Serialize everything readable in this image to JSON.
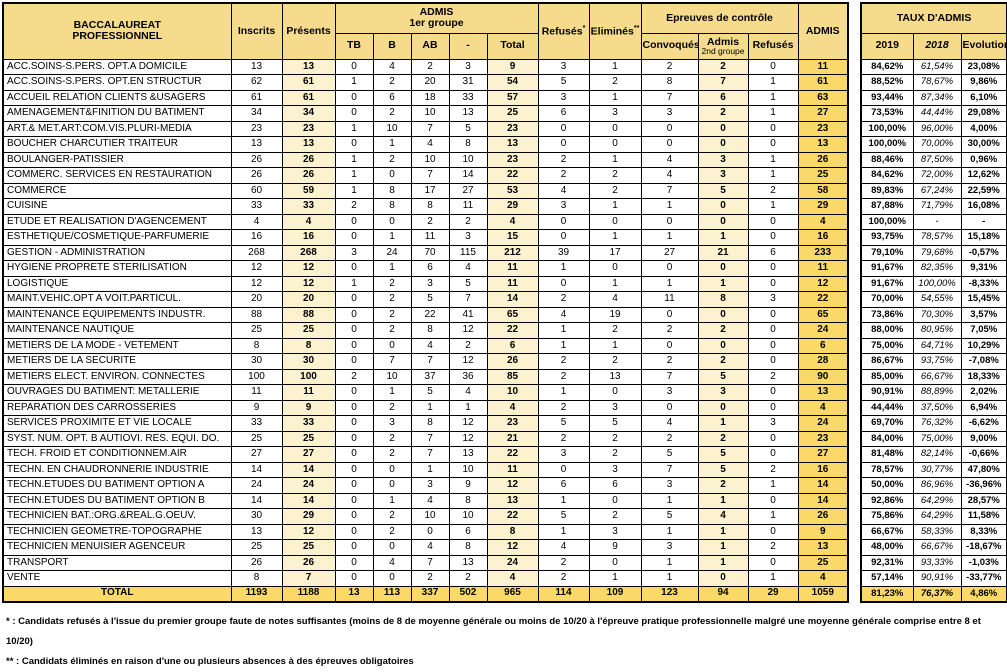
{
  "colors": {
    "header_bg": "#F7DB8D",
    "light_bg": "#FDF2CF",
    "gold_bg": "#FBD968"
  },
  "main_table": {
    "title_line1": "BACCALAUREAT",
    "title_line2": "PROFESSIONNEL",
    "headers": {
      "inscrits": "Inscrits",
      "presents": "Présents",
      "admis_group_line1": "ADMIS",
      "admis_group_line2": "1er groupe",
      "sub_tb": "TB",
      "sub_b": "B",
      "sub_ab": "AB",
      "sub_dash": "-",
      "sub_total": "Total",
      "refuses_label": "Refusés",
      "refuses_mark": "*",
      "elimines_label": "Eliminés",
      "elimines_mark": "**",
      "controle_group": "Epreuves de contrôle",
      "sub_convoques": "Convoqués",
      "admis2_line1": "Admis",
      "admis2_line2": "2nd groupe",
      "sub_refuses2": "Refusés",
      "admis": "ADMIS"
    },
    "rows": [
      {
        "label": "ACC.SOINS-S.PERS. OPT.A DOMICILE",
        "values": [
          13,
          13,
          0,
          4,
          2,
          3,
          9,
          3,
          1,
          2,
          2,
          0,
          11
        ]
      },
      {
        "label": "ACC.SOINS-S.PERS. OPT.EN STRUCTUR",
        "values": [
          62,
          61,
          1,
          2,
          20,
          31,
          54,
          5,
          2,
          8,
          7,
          1,
          61
        ]
      },
      {
        "label": "ACCUEIL RELATION CLIENTS &USAGERS",
        "values": [
          61,
          61,
          0,
          6,
          18,
          33,
          57,
          3,
          1,
          7,
          6,
          1,
          63
        ]
      },
      {
        "label": "AMENAGEMENT&FINITION DU BATIMENT",
        "values": [
          34,
          34,
          0,
          2,
          10,
          13,
          25,
          6,
          3,
          3,
          2,
          1,
          27
        ]
      },
      {
        "label": "ART.& MET.ART:COM.VIS.PLURI-MEDIA",
        "values": [
          23,
          23,
          1,
          10,
          7,
          5,
          23,
          0,
          0,
          0,
          0,
          0,
          23
        ]
      },
      {
        "label": "BOUCHER CHARCUTIER TRAITEUR",
        "values": [
          13,
          13,
          0,
          1,
          4,
          8,
          13,
          0,
          0,
          0,
          0,
          0,
          13
        ]
      },
      {
        "label": "BOULANGER-PATISSIER",
        "values": [
          26,
          26,
          1,
          2,
          10,
          10,
          23,
          2,
          1,
          4,
          3,
          1,
          26
        ]
      },
      {
        "label": "COMMERC. SERVICES EN RESTAURATION",
        "values": [
          26,
          26,
          1,
          0,
          7,
          14,
          22,
          2,
          2,
          4,
          3,
          1,
          25
        ]
      },
      {
        "label": "COMMERCE",
        "values": [
          60,
          59,
          1,
          8,
          17,
          27,
          53,
          4,
          2,
          7,
          5,
          2,
          58
        ]
      },
      {
        "label": "CUISINE",
        "values": [
          33,
          33,
          2,
          8,
          8,
          11,
          29,
          3,
          1,
          1,
          0,
          1,
          29
        ]
      },
      {
        "label": "ETUDE ET REALISATION D'AGENCEMENT",
        "values": [
          4,
          4,
          0,
          0,
          2,
          2,
          4,
          0,
          0,
          0,
          0,
          0,
          4
        ]
      },
      {
        "label": "ESTHETIQUE/COSMETIQUE-PARFUMERIE",
        "values": [
          16,
          16,
          0,
          1,
          11,
          3,
          15,
          0,
          1,
          1,
          1,
          0,
          16
        ]
      },
      {
        "label": "GESTION - ADMINISTRATION",
        "values": [
          268,
          268,
          3,
          24,
          70,
          115,
          212,
          39,
          17,
          27,
          21,
          6,
          233
        ]
      },
      {
        "label": "HYGIENE PROPRETE STERILISATION",
        "values": [
          12,
          12,
          0,
          1,
          6,
          4,
          11,
          1,
          0,
          0,
          0,
          0,
          11
        ]
      },
      {
        "label": "LOGISTIQUE",
        "values": [
          12,
          12,
          1,
          2,
          3,
          5,
          11,
          0,
          1,
          1,
          1,
          0,
          12
        ]
      },
      {
        "label": "MAINT.VEHIC.OPT A VOIT.PARTICUL.",
        "values": [
          20,
          20,
          0,
          2,
          5,
          7,
          14,
          2,
          4,
          11,
          8,
          3,
          22
        ]
      },
      {
        "label": "MAINTENANCE EQUIPEMENTS INDUSTR.",
        "values": [
          88,
          88,
          0,
          2,
          22,
          41,
          65,
          4,
          19,
          0,
          0,
          0,
          65
        ]
      },
      {
        "label": "MAINTENANCE NAUTIQUE",
        "values": [
          25,
          25,
          0,
          2,
          8,
          12,
          22,
          1,
          2,
          2,
          2,
          0,
          24
        ]
      },
      {
        "label": "METIERS DE LA MODE - VETEMENT",
        "values": [
          8,
          8,
          0,
          0,
          4,
          2,
          6,
          1,
          1,
          0,
          0,
          0,
          6
        ]
      },
      {
        "label": "METIERS DE LA SECURITE",
        "values": [
          30,
          30,
          0,
          7,
          7,
          12,
          26,
          2,
          2,
          2,
          2,
          0,
          28
        ]
      },
      {
        "label": "METIERS ELECT. ENVIRON. CONNECTES",
        "values": [
          100,
          100,
          2,
          10,
          37,
          36,
          85,
          2,
          13,
          7,
          5,
          2,
          90
        ]
      },
      {
        "label": "OUVRAGES DU BATIMENT: METALLERIE",
        "values": [
          11,
          11,
          0,
          1,
          5,
          4,
          10,
          1,
          0,
          3,
          3,
          0,
          13
        ]
      },
      {
        "label": "REPARATION DES CARROSSERIES",
        "values": [
          9,
          9,
          0,
          2,
          1,
          1,
          4,
          2,
          3,
          0,
          0,
          0,
          4
        ]
      },
      {
        "label": "SERVICES PROXIMITE ET VIE LOCALE",
        "values": [
          33,
          33,
          0,
          3,
          8,
          12,
          23,
          5,
          5,
          4,
          1,
          3,
          24
        ]
      },
      {
        "label": "SYST. NUM. OPT. B AUTIOVI. RES. EQUI. DO.",
        "values": [
          25,
          25,
          0,
          2,
          7,
          12,
          21,
          2,
          2,
          2,
          2,
          0,
          23
        ]
      },
      {
        "label": "TECH. FROID ET CONDITIONNEM.AIR",
        "values": [
          27,
          27,
          0,
          2,
          7,
          13,
          22,
          3,
          2,
          5,
          5,
          0,
          27
        ]
      },
      {
        "label": "TECHN. EN CHAUDRONNERIE INDUSTRIE",
        "values": [
          14,
          14,
          0,
          0,
          1,
          10,
          11,
          0,
          3,
          7,
          5,
          2,
          16
        ]
      },
      {
        "label": "TECHN.ETUDES DU BATIMENT OPTION A",
        "values": [
          24,
          24,
          0,
          0,
          3,
          9,
          12,
          6,
          6,
          3,
          2,
          1,
          14
        ]
      },
      {
        "label": "TECHN.ETUDES DU BATIMENT OPTION B",
        "values": [
          14,
          14,
          0,
          1,
          4,
          8,
          13,
          1,
          0,
          1,
          1,
          0,
          14
        ]
      },
      {
        "label": "TECHNICIEN BAT.:ORG.&REAL.G.OEUV.",
        "values": [
          30,
          29,
          0,
          2,
          10,
          10,
          22,
          5,
          2,
          5,
          4,
          1,
          26
        ]
      },
      {
        "label": "TECHNICIEN GEOMETRE-TOPOGRAPHE",
        "values": [
          13,
          12,
          0,
          2,
          0,
          6,
          8,
          1,
          3,
          1,
          1,
          0,
          9
        ]
      },
      {
        "label": "TECHNICIEN MENUISIER AGENCEUR",
        "values": [
          25,
          25,
          0,
          0,
          4,
          8,
          12,
          4,
          9,
          3,
          1,
          2,
          13
        ]
      },
      {
        "label": "TRANSPORT",
        "values": [
          26,
          26,
          0,
          4,
          7,
          13,
          24,
          2,
          0,
          1,
          1,
          0,
          25
        ]
      },
      {
        "label": "VENTE",
        "values": [
          8,
          7,
          0,
          0,
          2,
          2,
          4,
          2,
          1,
          1,
          0,
          1,
          4
        ]
      }
    ],
    "total": {
      "label": "TOTAL",
      "values": [
        1193,
        1188,
        13,
        113,
        337,
        502,
        965,
        114,
        109,
        123,
        94,
        29,
        1059
      ]
    }
  },
  "taux_table": {
    "title": "TAUX D'ADMIS",
    "col_2019": "2019",
    "col_2018": "2018",
    "col_evolution": "Evolution",
    "rows": [
      [
        "84,62%",
        "61,54%",
        "23,08%"
      ],
      [
        "88,52%",
        "78,67%",
        "9,86%"
      ],
      [
        "93,44%",
        "87,34%",
        "6,10%"
      ],
      [
        "73,53%",
        "44,44%",
        "29,08%"
      ],
      [
        "100,00%",
        "96,00%",
        "4,00%"
      ],
      [
        "100,00%",
        "70,00%",
        "30,00%"
      ],
      [
        "88,46%",
        "87,50%",
        "0,96%"
      ],
      [
        "84,62%",
        "72,00%",
        "12,62%"
      ],
      [
        "89,83%",
        "67,24%",
        "22,59%"
      ],
      [
        "87,88%",
        "71,79%",
        "16,08%"
      ],
      [
        "100,00%",
        "-",
        "-"
      ],
      [
        "93,75%",
        "78,57%",
        "15,18%"
      ],
      [
        "79,10%",
        "79,68%",
        "-0,57%"
      ],
      [
        "91,67%",
        "82,35%",
        "9,31%"
      ],
      [
        "91,67%",
        "100,00%",
        "-8,33%"
      ],
      [
        "70,00%",
        "54,55%",
        "15,45%"
      ],
      [
        "73,86%",
        "70,30%",
        "3,57%"
      ],
      [
        "88,00%",
        "80,95%",
        "7,05%"
      ],
      [
        "75,00%",
        "64,71%",
        "10,29%"
      ],
      [
        "86,67%",
        "93,75%",
        "-7,08%"
      ],
      [
        "85,00%",
        "66,67%",
        "18,33%"
      ],
      [
        "90,91%",
        "88,89%",
        "2,02%"
      ],
      [
        "44,44%",
        "37,50%",
        "6,94%"
      ],
      [
        "69,70%",
        "76,32%",
        "-6,62%"
      ],
      [
        "84,00%",
        "75,00%",
        "9,00%"
      ],
      [
        "81,48%",
        "82,14%",
        "-0,66%"
      ],
      [
        "78,57%",
        "30,77%",
        "47,80%"
      ],
      [
        "50,00%",
        "86,96%",
        "-36,96%"
      ],
      [
        "92,86%",
        "64,29%",
        "28,57%"
      ],
      [
        "75,86%",
        "64,29%",
        "11,58%"
      ],
      [
        "66,67%",
        "58,33%",
        "8,33%"
      ],
      [
        "48,00%",
        "66,67%",
        "-18,67%"
      ],
      [
        "92,31%",
        "93,33%",
        "-1,03%"
      ],
      [
        "57,14%",
        "90,91%",
        "-33,77%"
      ]
    ],
    "total": [
      "81,23%",
      "76,37%",
      "4,86%"
    ]
  },
  "footnotes": [
    "* : Candidats refusés à l'issue du premier groupe faute de notes suffisantes (moins de 8 de moyenne générale ou moins de 10/20 à l'épreuve pratique professionnelle malgré une moyenne générale comprise entre 8 et 10/20)",
    "** : Candidats éliminés en raison d'une ou plusieurs absences à des épreuves obligatoires"
  ]
}
